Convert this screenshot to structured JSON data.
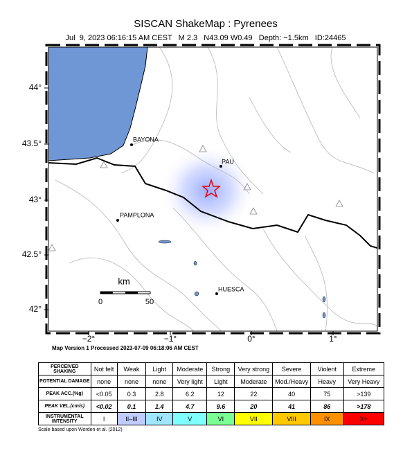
{
  "header": {
    "title": "SISCAN ShakeMap : Pyrenees",
    "subtitle": "Jul  9, 2023 06:16:15 AM CEST   M 2.3   N43.09 W0.49   Depth: −1.5km   ID:24465"
  },
  "map": {
    "latitude_labels": [
      "44°",
      "43.5°",
      "43°",
      "42.5°",
      "42°"
    ],
    "longitude_labels": [
      "−2°",
      "−1°",
      "0°",
      "1°"
    ],
    "cities": [
      "BAYONA",
      "PAU",
      "PAMPLONA",
      "HUESCA"
    ],
    "scale_bar": {
      "unit": "km",
      "labels": [
        "0",
        "50"
      ]
    }
  },
  "version_note": "Map Version 1 Processed 2023-07-09 06:18:06 AM CEST",
  "table": {
    "rows": [
      [
        "PERCEIVED SHAKING",
        "Not felt",
        "Weak",
        "Light",
        "Moderate",
        "Strong",
        "Very strong",
        "Severe",
        "Violent",
        "Extreme"
      ],
      [
        "POTENTIAL DAMAGE",
        "none",
        "none",
        "none",
        "Very light",
        "Light",
        "Moderate",
        "Mod./Heavy",
        "Heavy",
        "Very Heavy"
      ],
      [
        "PEAK ACC.(%g)",
        "<0.05",
        "0.3",
        "2.8",
        "6.2",
        "12",
        "22",
        "40",
        "75",
        ">139"
      ],
      [
        "PEAK VEL.(cm/s)",
        "<0.02",
        "0.1",
        "1.4",
        "4.7",
        "9.6",
        "20",
        "41",
        "86",
        ">178"
      ],
      [
        "INSTRUMENTAL INTENSITY",
        "I",
        "II–III",
        "IV",
        "V",
        "VI",
        "VII",
        "VIII",
        "IX",
        "X+"
      ]
    ]
  },
  "footnote": "Scale based upon Worden et al. (2012)"
}
